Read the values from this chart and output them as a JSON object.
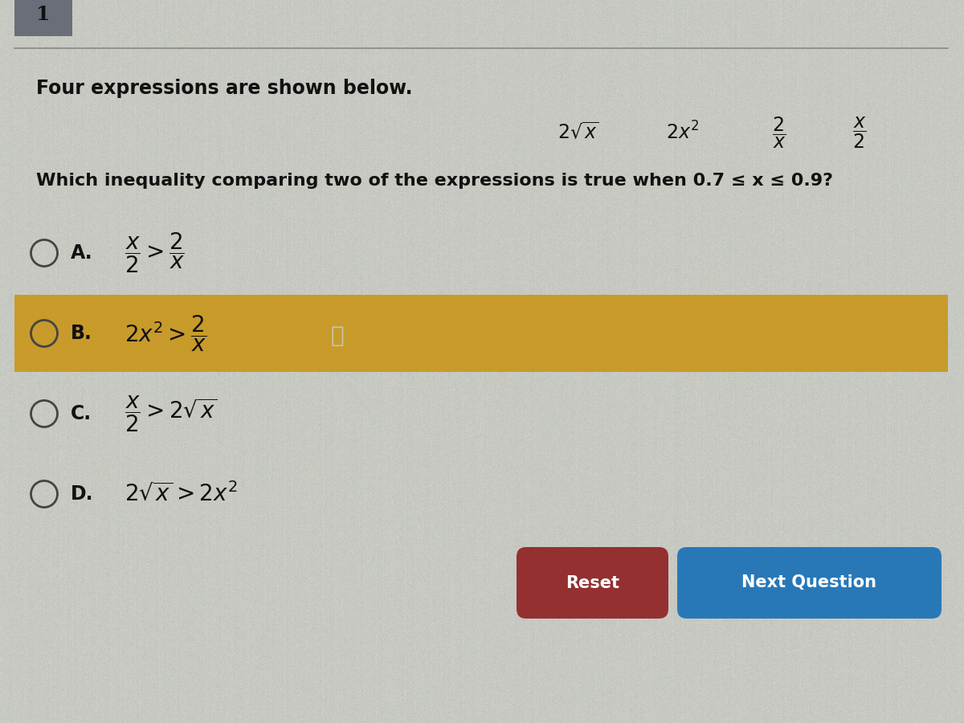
{
  "bg_color": "#c8c9c2",
  "header_box_color": "#6a6e78",
  "header_text": "1",
  "header_text_color": "#111111",
  "title_text": "Four expressions are shown below.",
  "expr_display": [
    "$2\\sqrt{x}$",
    "$2x^2$",
    "$\\dfrac{2}{x}$",
    "$\\dfrac{x}{2}$"
  ],
  "question_text": "Which inequality comparing two of the expressions is true when 0.7 ≤ x ≤ 0.9?",
  "option_labels": [
    "A.",
    "B.",
    "C.",
    "D."
  ],
  "option_math": [
    "$\\dfrac{x}{2} > \\dfrac{2}{x}$",
    "$2x^2 > \\dfrac{2}{x}$",
    "$\\dfrac{x}{2} > 2\\sqrt{x}$",
    "$2\\sqrt{x} > 2x^2$"
  ],
  "highlighted_option": 1,
  "highlight_color": "#c8961a",
  "reset_btn_color": "#943030",
  "next_btn_color": "#2878b8",
  "reset_text": "Reset",
  "next_text": "Next Question",
  "btn_text_color": "#ffffff",
  "separator_color": "#888888",
  "radio_color": "#444444",
  "text_color": "#111111",
  "title_font_size": 17,
  "question_font_size": 16,
  "option_font_size": 17,
  "expr_font_size": 17
}
